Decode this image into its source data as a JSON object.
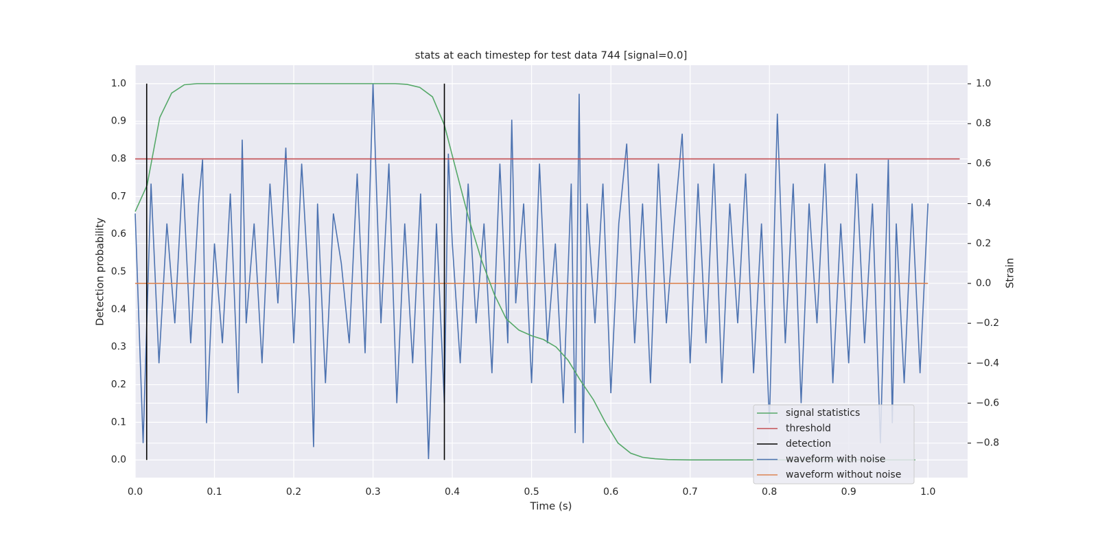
{
  "chart_data": {
    "type": "line",
    "title": "stats at each timestep for test data 744 [signal=0.0]",
    "xlabel": "Time (s)",
    "ylabel": "Detection probability",
    "y2label": "Strain",
    "xlim": [
      0,
      1.05
    ],
    "ylim": [
      -0.047,
      1.049
    ],
    "y2lim": [
      -0.973,
      1.093
    ],
    "xticks": [
      {
        "value": 0,
        "label": "0.0"
      },
      0.1,
      0.2,
      0.3,
      0.4,
      0.5,
      0.6,
      0.7,
      0.8,
      0.9,
      {
        "value": 1,
        "label": "1.0"
      }
    ],
    "yticks": [
      {
        "value": 0,
        "label": "0.0"
      },
      0.1,
      0.2,
      0.3,
      0.4,
      0.5,
      0.6,
      0.7,
      0.8,
      0.9,
      {
        "value": 1,
        "label": "1.0"
      }
    ],
    "y2ticks": [
      {
        "value": -0.8,
        "label": "−0.8"
      },
      {
        "value": -0.6,
        "label": "−0.6"
      },
      {
        "value": -0.4,
        "label": "−0.4"
      },
      {
        "value": -0.2,
        "label": "−0.2"
      },
      {
        "value": 0,
        "label": "0.0"
      },
      0.2,
      0.4,
      0.6,
      0.8,
      {
        "value": 1,
        "label": "1.0"
      }
    ],
    "grid": true,
    "legend": "lower right",
    "series": [
      {
        "name": "waveform with noise",
        "color": "#4c72b0",
        "axis": "y2",
        "x": [
          0,
          0.01,
          0.02,
          0.03,
          0.04,
          0.05,
          0.06,
          0.07,
          0.08,
          0.085,
          0.09,
          0.1,
          0.11,
          0.12,
          0.13,
          0.135,
          0.14,
          0.15,
          0.16,
          0.17,
          0.18,
          0.19,
          0.2,
          0.21,
          0.22,
          0.225,
          0.23,
          0.24,
          0.25,
          0.26,
          0.27,
          0.28,
          0.29,
          0.3,
          0.31,
          0.32,
          0.33,
          0.34,
          0.35,
          0.36,
          0.37,
          0.38,
          0.39,
          0.395,
          0.4,
          0.41,
          0.42,
          0.43,
          0.44,
          0.45,
          0.46,
          0.47,
          0.475,
          0.48,
          0.49,
          0.5,
          0.51,
          0.52,
          0.53,
          0.54,
          0.55,
          0.555,
          0.56,
          0.565,
          0.57,
          0.58,
          0.59,
          0.6,
          0.61,
          0.62,
          0.63,
          0.64,
          0.65,
          0.66,
          0.67,
          0.68,
          0.69,
          0.7,
          0.71,
          0.72,
          0.73,
          0.74,
          0.75,
          0.76,
          0.77,
          0.78,
          0.79,
          0.8,
          0.81,
          0.82,
          0.83,
          0.84,
          0.85,
          0.86,
          0.87,
          0.88,
          0.89,
          0.9,
          0.91,
          0.92,
          0.93,
          0.94,
          0.95,
          0.955,
          0.96,
          0.97,
          0.98,
          0.99,
          1
        ],
        "values": [
          0.35,
          -0.8,
          0.5,
          -0.4,
          0.3,
          -0.2,
          0.55,
          -0.3,
          0.4,
          0.62,
          -0.7,
          0.2,
          -0.3,
          0.45,
          -0.55,
          0.72,
          -0.2,
          0.3,
          -0.4,
          0.5,
          -0.1,
          0.68,
          -0.3,
          0.6,
          -0.1,
          -0.82,
          0.4,
          -0.5,
          0.35,
          0.1,
          -0.3,
          0.55,
          -0.35,
          1.0,
          -0.2,
          0.6,
          -0.6,
          0.3,
          -0.4,
          0.45,
          -0.88,
          0.3,
          -0.6,
          0.65,
          0.2,
          -0.4,
          0.5,
          -0.2,
          0.3,
          -0.45,
          0.6,
          -0.3,
          0.82,
          -0.1,
          0.4,
          -0.5,
          0.6,
          -0.3,
          0.2,
          -0.6,
          0.5,
          -0.75,
          0.95,
          -0.8,
          0.4,
          -0.2,
          0.5,
          -0.55,
          0.3,
          0.7,
          -0.3,
          0.4,
          -0.5,
          0.6,
          -0.2,
          0.3,
          0.75,
          -0.4,
          0.5,
          -0.3,
          0.6,
          -0.5,
          0.4,
          -0.2,
          0.55,
          -0.45,
          0.3,
          -0.7,
          0.85,
          -0.3,
          0.5,
          -0.6,
          0.4,
          -0.2,
          0.6,
          -0.5,
          0.3,
          -0.4,
          0.55,
          -0.3,
          0.4,
          -0.8,
          0.62,
          -0.7,
          0.3,
          -0.5,
          0.4,
          -0.45,
          0.4
        ]
      },
      {
        "name": "waveform without noise",
        "color": "#dd8452",
        "axis": "y2",
        "x": [
          0,
          1
        ],
        "values": [
          0,
          0
        ]
      },
      {
        "name": "signal statistics",
        "color": "#55a868",
        "x": [
          0,
          0.015,
          0.031,
          0.046,
          0.062,
          0.078,
          0.2,
          0.328,
          0.343,
          0.359,
          0.375,
          0.39,
          0.406,
          0.421,
          0.437,
          0.453,
          0.468,
          0.484,
          0.5,
          0.515,
          0.531,
          0.546,
          0.562,
          0.578,
          0.593,
          0.609,
          0.625,
          0.64,
          0.656,
          0.672,
          0.7,
          0.984
        ],
        "values": [
          0.66,
          0.73,
          0.91,
          0.975,
          0.997,
          1.0,
          1.0,
          1.0,
          0.998,
          0.99,
          0.965,
          0.89,
          0.76,
          0.64,
          0.53,
          0.44,
          0.375,
          0.345,
          0.33,
          0.32,
          0.3,
          0.265,
          0.21,
          0.16,
          0.1,
          0.045,
          0.018,
          0.007,
          0.003,
          0.001,
          0.0,
          0.0
        ]
      },
      {
        "name": "threshold",
        "color": "#c44e52",
        "x": [
          0,
          1.04
        ],
        "values": [
          0.8,
          0.8
        ]
      },
      {
        "name": "detection",
        "color": "#000000",
        "x": [
          0.0145,
          0.0145,
          0.0145,
          0.39,
          0.39
        ],
        "values": [
          0,
          1,
          null,
          0,
          1
        ]
      }
    ]
  }
}
